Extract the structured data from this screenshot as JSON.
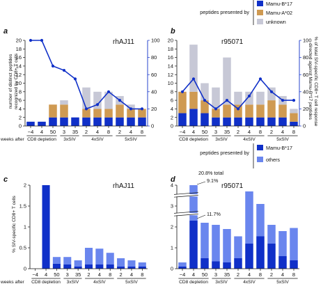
{
  "legend_top": {
    "heading": "peptides presented by",
    "items": [
      {
        "label": "Mamu-B*17",
        "color": "#1030c8"
      },
      {
        "label": "Mamu-A*02",
        "color": "#cf9a52"
      },
      {
        "label": "unknown",
        "color": "#c7c8d6"
      }
    ]
  },
  "legend_bottom": {
    "heading": "peptides presented by",
    "items": [
      {
        "label": "Mamu-B*17",
        "color": "#1030c8"
      },
      {
        "label": "others",
        "color": "#6a86ee"
      }
    ]
  },
  "x_labels": [
    "−4",
    "4",
    "50",
    "3",
    "35",
    "2",
    "4",
    "8",
    "2",
    "4",
    "8"
  ],
  "x_groups": [
    "CD8 depletion",
    "3xSIV",
    "4xSIV",
    "5xSIV"
  ],
  "x_row_label": "weeks after",
  "annotations": {
    "d_total": "20.8% total",
    "d_top": "9.1%",
    "d_mid": "11.7%"
  },
  "chart_data": [
    {
      "panel": "a",
      "title": "rhAJ11",
      "type": "bar",
      "categories": [
        "−4",
        "4",
        "50",
        "3",
        "35",
        "2",
        "4",
        "8",
        "2",
        "4",
        "8"
      ],
      "ylabel": "number of distinct peptides recognized by CD8+ T cells",
      "ylim": [
        0,
        20
      ],
      "yticks": [
        0,
        2,
        4,
        6,
        8,
        10,
        12,
        14,
        16,
        18,
        20
      ],
      "y2label": "% of total SIV-specific CD8+ T cell response directed against Mamu-B*17 peptides",
      "y2lim": [
        0,
        100
      ],
      "y2ticks": [
        0,
        20,
        40,
        60,
        80,
        100
      ],
      "series": [
        {
          "name": "Mamu-B*17",
          "values": [
            1,
            1,
            2,
            2,
            2,
            2,
            2,
            2,
            2,
            2,
            2
          ]
        },
        {
          "name": "Mamu-A*02",
          "values": [
            0,
            0,
            3,
            3,
            0,
            2,
            2,
            2,
            3,
            2,
            2
          ]
        },
        {
          "name": "unknown",
          "values": [
            0,
            0,
            0,
            1,
            0,
            5,
            4,
            4,
            2,
            1,
            0
          ]
        }
      ],
      "line": [
        100,
        100,
        70,
        65,
        55,
        20,
        25,
        40,
        30,
        20,
        20
      ]
    },
    {
      "panel": "b",
      "title": "r95071",
      "type": "bar",
      "categories": [
        "−4",
        "4",
        "50",
        "3",
        "35",
        "2",
        "4",
        "8",
        "2",
        "4",
        "8"
      ],
      "ylim": [
        0,
        20
      ],
      "yticks": [
        0,
        2,
        4,
        6,
        8,
        10,
        12,
        14,
        16,
        18,
        20
      ],
      "y2lim": [
        0,
        100
      ],
      "y2ticks": [
        0,
        20,
        40,
        60,
        80,
        100
      ],
      "series": [
        {
          "name": "Mamu-B*17",
          "values": [
            3,
            4,
            3,
            2,
            2,
            2,
            2,
            2,
            2,
            2,
            1
          ]
        },
        {
          "name": "Mamu-A*02",
          "values": [
            5,
            4,
            3,
            2,
            3,
            3,
            3,
            3,
            4,
            3,
            2
          ]
        },
        {
          "name": "unknown",
          "values": [
            0,
            11,
            4,
            5,
            11,
            3,
            3,
            3,
            3,
            2,
            1
          ]
        }
      ],
      "line": [
        40,
        55,
        30,
        20,
        30,
        20,
        35,
        55,
        40,
        30,
        30
      ]
    },
    {
      "panel": "c",
      "title": "rhAJ11",
      "type": "bar",
      "categories": [
        "−4",
        "4",
        "50",
        "3",
        "35",
        "2",
        "4",
        "8",
        "2",
        "4",
        "8"
      ],
      "ylabel": "% SIV-specific CD8+ T cells",
      "ylim": [
        0,
        2
      ],
      "yticks": [
        0,
        0.5,
        1,
        1.5,
        2
      ],
      "series": [
        {
          "name": "Mamu-B*17",
          "values": [
            0,
            2,
            0.12,
            0.1,
            0.05,
            0.1,
            0.1,
            0.1,
            0.05,
            0.05,
            0.05
          ]
        },
        {
          "name": "others",
          "values": [
            0,
            0,
            0.16,
            0.18,
            0.15,
            0.4,
            0.38,
            0.28,
            0.2,
            0.15,
            0.1
          ]
        }
      ]
    },
    {
      "panel": "d",
      "title": "r95071",
      "type": "bar",
      "categories": [
        "−4",
        "4",
        "50",
        "3",
        "35",
        "2",
        "4",
        "8",
        "2",
        "4",
        "8"
      ],
      "ylim": [
        0,
        4
      ],
      "yticks": [
        0,
        1,
        2,
        3,
        4
      ],
      "axis_break": true,
      "series": [
        {
          "name": "Mamu-B*17",
          "values": [
            0.1,
            2.3,
            0.5,
            0.35,
            0.3,
            0.5,
            1.2,
            1.55,
            1.2,
            0.6,
            0.4
          ]
        },
        {
          "name": "others",
          "values": [
            0.2,
            1.7,
            1.7,
            1.75,
            1.6,
            1.05,
            2.5,
            1.55,
            0.9,
            1.2,
            1.55
          ]
        }
      ]
    }
  ]
}
